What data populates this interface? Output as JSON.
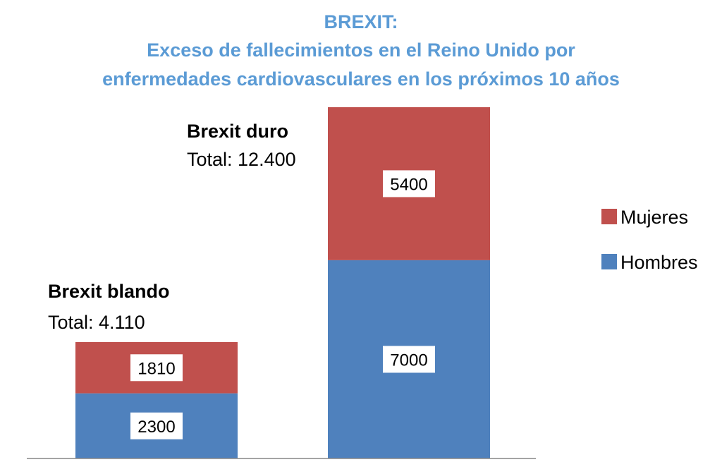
{
  "chart_data": {
    "type": "bar",
    "stacked": true,
    "title_lines": [
      "BREXIT:",
      "Exceso de fallecimientos en el Reino Unido por",
      "enfermedades cardiovasculares en los próximos 10 años"
    ],
    "categories": [
      "Brexit blando",
      "Brexit duro"
    ],
    "totals": [
      "Total: 4.110",
      "Total: 12.400"
    ],
    "series": [
      {
        "name": "Hombres",
        "values": [
          2300,
          7000
        ],
        "color": "#4f81bd"
      },
      {
        "name": "Mujeres",
        "values": [
          1810,
          5400
        ],
        "color": "#c0504d"
      }
    ],
    "legend_order": [
      "Mujeres",
      "Hombres"
    ],
    "legend_position": "right",
    "y_axis_visible": false,
    "grid": false,
    "ylim": [
      0,
      12400
    ]
  }
}
